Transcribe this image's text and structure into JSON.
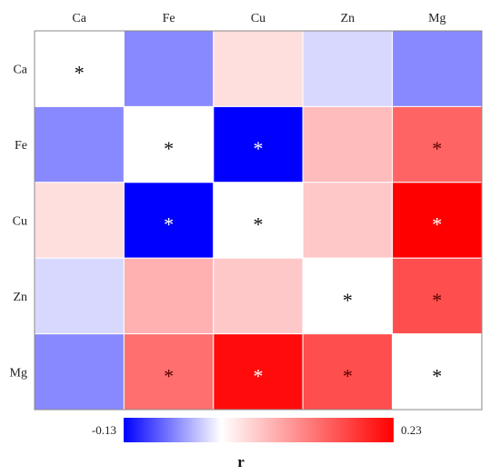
{
  "chart_data": {
    "type": "heatmap",
    "variables": [
      "Ca",
      "Fe",
      "Cu",
      "Zn",
      "Mg"
    ],
    "values": [
      [
        null,
        -0.06,
        0.03,
        -0.02,
        -0.06
      ],
      [
        -0.06,
        null,
        -0.13,
        0.06,
        0.14
      ],
      [
        0.03,
        -0.13,
        null,
        0.05,
        0.23
      ],
      [
        -0.02,
        0.07,
        0.05,
        null,
        0.16
      ],
      [
        -0.06,
        0.13,
        0.22,
        0.16,
        null
      ]
    ],
    "significance": [
      [
        "*",
        "",
        "",
        "",
        ""
      ],
      [
        "",
        "*",
        "*",
        "",
        "*"
      ],
      [
        "",
        "*",
        "*",
        "",
        "*"
      ],
      [
        "",
        "",
        "",
        "*",
        "*"
      ],
      [
        "",
        "*",
        "*",
        "*",
        "*"
      ]
    ],
    "colorbar": {
      "min": -0.13,
      "max": 0.23,
      "min_label": "-0.13",
      "max_label": "0.23",
      "title": "r",
      "low_color": "#0000ff",
      "mid_color": "#ffffff",
      "high_color": "#ff0000"
    }
  }
}
